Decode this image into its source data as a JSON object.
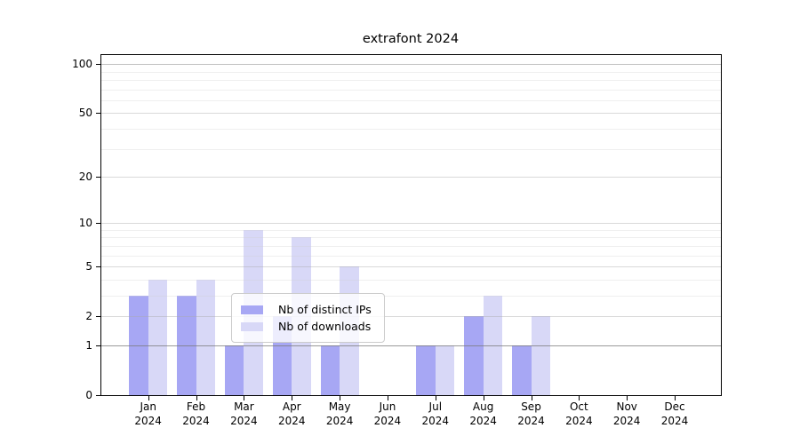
{
  "chart_data": {
    "type": "bar",
    "title": "extrafont 2024",
    "categories": [
      "Jan",
      "Feb",
      "Mar",
      "Apr",
      "May",
      "Jun",
      "Jul",
      "Aug",
      "Sep",
      "Oct",
      "Nov",
      "Dec"
    ],
    "year": "2024",
    "series": [
      {
        "name": "Nb of distinct IPs",
        "color": "#a7a7f4",
        "values": [
          3,
          3,
          1,
          2,
          1,
          0,
          1,
          2,
          1,
          0,
          0,
          0
        ]
      },
      {
        "name": "Nb of downloads",
        "color": "#d8d8f7",
        "values": [
          4,
          4,
          9,
          8,
          5,
          0,
          1,
          3,
          2,
          0,
          0,
          0
        ]
      }
    ],
    "y_scale": "log1p",
    "y_ticks": [
      0,
      1,
      2,
      5,
      10,
      20,
      50,
      100
    ],
    "y_minor_gridlines": [
      3,
      4,
      6,
      7,
      8,
      9,
      30,
      40,
      60,
      70,
      80,
      90
    ],
    "ylim": [
      0,
      113
    ],
    "grid": "horizontal, on top of bars",
    "legend_position": "inside bottom-center",
    "xlabel": "",
    "ylabel": ""
  }
}
